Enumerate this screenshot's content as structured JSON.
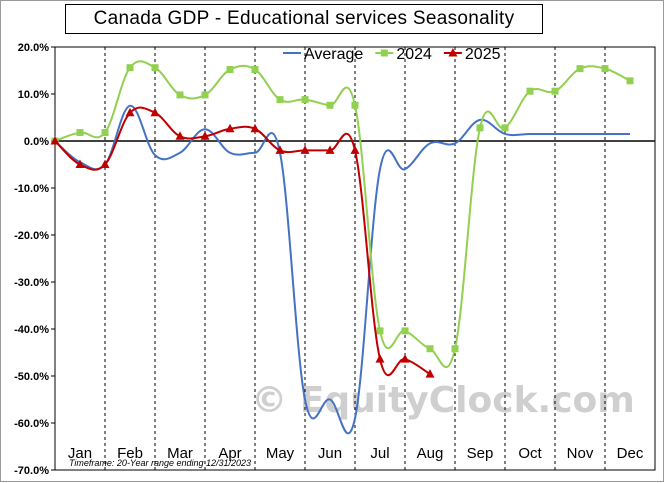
{
  "chart_data": {
    "type": "line",
    "title": "Canada  GDP - Educational services Seasonality",
    "categories": [
      "Jan",
      "Feb",
      "Mar",
      "Apr",
      "May",
      "Jun",
      "Jul",
      "Aug",
      "Sep",
      "Oct",
      "Nov",
      "Dec"
    ],
    "yticks": [
      "20.0%",
      "10.0%",
      "0.0%",
      "-10.0%",
      "-20.0%",
      "-30.0%",
      "-40.0%",
      "-50.0%",
      "-60.0%",
      "-70.0%"
    ],
    "ylim": [
      -70,
      20
    ],
    "grid": "vertical dashed month dividers",
    "legend": "top",
    "footnote": "Timeframe: 20-Year range ending 12/31/2023",
    "watermark": "© EquityClock.com",
    "series": [
      {
        "name": "Average",
        "color": "#4472c4",
        "marker": "none",
        "x": [
          0,
          0.5,
          1,
          1.5,
          2,
          2.5,
          3,
          3.5,
          4,
          4.5,
          5,
          5.5,
          6,
          6.5,
          7,
          7.5,
          8,
          8.5,
          9,
          9.5,
          10,
          10.5,
          11,
          11.5
        ],
        "y": [
          0,
          -4.5,
          -5,
          7.5,
          -3,
          -2.5,
          2.5,
          -2.5,
          -2.5,
          -2.5,
          -55,
          -55,
          -59,
          -6,
          -6,
          -0.5,
          -0.5,
          4.5,
          1.5,
          1.5,
          1.5,
          1.5,
          1.5,
          1.5
        ]
      },
      {
        "name": "2024",
        "color": "#92d050",
        "marker": "square",
        "x": [
          0,
          0.5,
          1,
          1.5,
          2,
          2.5,
          3,
          3.5,
          4,
          4.5,
          5,
          5.5,
          6,
          6.5,
          7,
          7.5,
          8,
          8.5,
          9,
          9.5,
          10,
          10.5,
          11,
          11.5
        ],
        "y": [
          0,
          1.8,
          1.8,
          15.6,
          15.6,
          9.8,
          9.8,
          15.2,
          15.2,
          8.8,
          8.8,
          7.6,
          7.6,
          -40.4,
          -40.4,
          -44.2,
          -44.2,
          2.8,
          2.8,
          10.6,
          10.6,
          15.4,
          15.4,
          12.8
        ]
      },
      {
        "name": "2025",
        "color": "#c00000",
        "marker": "triangle",
        "x": [
          0,
          0.5,
          1,
          1.5,
          2,
          2.5,
          3,
          3.5,
          4,
          4.5,
          5,
          5.5,
          6,
          6.5,
          7,
          7.5
        ],
        "y": [
          0,
          -5,
          -5,
          6,
          6,
          1,
          1,
          2.6,
          2.6,
          -2,
          -2,
          -2,
          -2,
          -46.4,
          -46.4,
          -49.6
        ]
      }
    ]
  }
}
